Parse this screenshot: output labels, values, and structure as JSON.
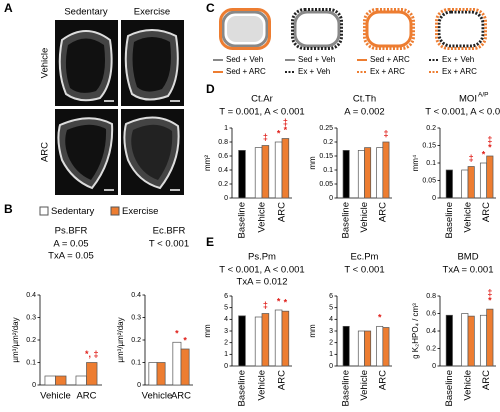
{
  "panels": [
    "A",
    "B",
    "C",
    "D",
    "E"
  ],
  "images": {
    "columns": [
      "Sedentary",
      "Exercise"
    ],
    "rows": [
      "Vehicle",
      "ARC"
    ]
  },
  "schematic": [
    {
      "legend": [
        "Sed + Veh",
        "Sed + ARC"
      ]
    },
    {
      "legend": [
        "Sed + Veh",
        "Ex + Veh"
      ]
    },
    {
      "legend": [
        "Sed + ARC",
        "Ex + ARC"
      ]
    },
    {
      "legend": [
        "Ex + Veh",
        "Ex + ARC"
      ]
    }
  ],
  "chart_data": [
    {
      "type": "bar",
      "title": "Ps.BFR",
      "stats": [
        "A = 0.05",
        "TxA = 0.05"
      ],
      "ylabel": "µm³/µm²/day",
      "categories": [
        "Vehicle",
        "ARC"
      ],
      "series": [
        {
          "name": "Sedentary",
          "color": "#ffffff",
          "values": [
            0.04,
            0.04
          ]
        },
        {
          "name": "Exercise",
          "color": "#ed7d31",
          "values": [
            0.04,
            0.1
          ]
        }
      ],
      "ylim": [
        0,
        0.4
      ],
      "yticks": [
        0,
        0.1,
        0.2,
        0.3,
        0.4
      ],
      "annotations": [
        {
          "text": "*, ‡",
          "series": 1,
          "index": 1
        }
      ]
    },
    {
      "type": "bar",
      "title": "Ec.BFR",
      "stats": [
        "T < 0.001"
      ],
      "ylabel": "µm³/µm²/day",
      "categories": [
        "Vehicle",
        "ARC"
      ],
      "series": [
        {
          "color": "#ffffff",
          "values": [
            0.1,
            0.19
          ]
        },
        {
          "color": "#ed7d31",
          "values": [
            0.1,
            0.16
          ]
        }
      ],
      "ylim": [
        0,
        0.4
      ],
      "yticks": [
        0,
        0.1,
        0.2,
        0.3,
        0.4
      ],
      "annotations": [
        {
          "text": "*",
          "series": 0,
          "index": 1
        },
        {
          "text": "*",
          "series": 1,
          "index": 1
        }
      ]
    },
    {
      "type": "bar",
      "title": "Ct.Ar",
      "stats": [
        "T = 0.001, A < 0.001"
      ],
      "ylabel": "mm²",
      "categories": [
        "Baseline",
        "Vehicle",
        "ARC"
      ],
      "series": [
        {
          "color": "#000000",
          "values": [
            0.68,
            null,
            null
          ]
        },
        {
          "color": "#ffffff",
          "values": [
            null,
            0.72,
            0.8
          ]
        },
        {
          "color": "#ed7d31",
          "values": [
            null,
            0.75,
            0.85
          ]
        }
      ],
      "ylim": [
        0,
        1
      ],
      "yticks": [
        0,
        0.2,
        0.4,
        0.6,
        0.8,
        1
      ],
      "annotations": [
        {
          "text": "‡",
          "series": 2,
          "index": 1
        },
        {
          "text": "*",
          "series": 1,
          "index": 2
        },
        {
          "text": "*",
          "series": 2,
          "index": 2
        },
        {
          "text": "‡",
          "series": 2,
          "index": 2
        }
      ]
    },
    {
      "type": "bar",
      "title": "Ct.Th",
      "stats": [
        "A = 0.002"
      ],
      "ylabel": "mm",
      "categories": [
        "Baseline",
        "Vehicle",
        "ARC"
      ],
      "series": [
        {
          "color": "#000000",
          "values": [
            0.17,
            null,
            null
          ]
        },
        {
          "color": "#ffffff",
          "values": [
            null,
            0.17,
            0.18
          ]
        },
        {
          "color": "#ed7d31",
          "values": [
            null,
            0.18,
            0.2
          ]
        }
      ],
      "ylim": [
        0,
        0.25
      ],
      "yticks": [
        0,
        0.05,
        0.1,
        0.15,
        0.2,
        0.25
      ],
      "annotations": [
        {
          "text": "‡",
          "series": 2,
          "index": 2
        }
      ]
    },
    {
      "type": "bar",
      "title": "MOI",
      "title_sup": "A/P",
      "stats": [
        "T < 0.001, A < 0.001"
      ],
      "ylabel": "mm⁴",
      "categories": [
        "Baseline",
        "Vehicle",
        "ARC"
      ],
      "series": [
        {
          "color": "#000000",
          "values": [
            0.08,
            null,
            null
          ]
        },
        {
          "color": "#ffffff",
          "values": [
            null,
            0.08,
            0.1
          ]
        },
        {
          "color": "#ed7d31",
          "values": [
            null,
            0.09,
            0.12
          ]
        }
      ],
      "ylim": [
        0,
        0.2
      ],
      "yticks": [
        0,
        0.05,
        0.1,
        0.15,
        0.2
      ],
      "annotations": [
        {
          "text": "‡",
          "series": 2,
          "index": 1
        },
        {
          "text": "*",
          "series": 1,
          "index": 2
        },
        {
          "text": "*",
          "series": 2,
          "index": 2
        },
        {
          "text": "‡",
          "series": 2,
          "index": 2
        }
      ]
    },
    {
      "type": "bar",
      "title": "Ps.Pm",
      "stats": [
        "T < 0.001, A < 0.001",
        "TxA = 0.012"
      ],
      "ylabel": "mm",
      "categories": [
        "Baseline",
        "Vehicle",
        "ARC"
      ],
      "series": [
        {
          "color": "#000000",
          "values": [
            4.3,
            null,
            null
          ]
        },
        {
          "color": "#ffffff",
          "values": [
            null,
            4.2,
            4.8
          ]
        },
        {
          "color": "#ed7d31",
          "values": [
            null,
            4.5,
            4.7
          ]
        }
      ],
      "ylim": [
        0,
        6
      ],
      "yticks": [
        0,
        1,
        2,
        3,
        4,
        5,
        6
      ],
      "annotations": [
        {
          "text": "‡",
          "series": 2,
          "index": 1
        },
        {
          "text": "*",
          "series": 1,
          "index": 2
        },
        {
          "text": "*",
          "series": 2,
          "index": 2
        }
      ]
    },
    {
      "type": "bar",
      "title": "Ec.Pm",
      "stats": [
        "T < 0.001"
      ],
      "ylabel": "mm",
      "categories": [
        "Baseline",
        "Vehicle",
        "ARC"
      ],
      "series": [
        {
          "color": "#000000",
          "values": [
            3.4,
            null,
            null
          ]
        },
        {
          "color": "#ffffff",
          "values": [
            null,
            3,
            3.4
          ]
        },
        {
          "color": "#ed7d31",
          "values": [
            null,
            3,
            3.3
          ]
        }
      ],
      "ylim": [
        0,
        6
      ],
      "yticks": [
        0,
        1,
        2,
        3,
        4,
        5,
        6
      ],
      "annotations": [
        {
          "text": "*",
          "series": 1,
          "index": 2
        }
      ]
    },
    {
      "type": "bar",
      "title": "BMD",
      "stats": [
        "TxA = 0.001"
      ],
      "ylabel": "g K₂HPO₄ / cm³",
      "categories": [
        "Baseline",
        "Vehicle",
        "ARC"
      ],
      "series": [
        {
          "color": "#000000",
          "values": [
            0.58,
            null,
            null
          ]
        },
        {
          "color": "#ffffff",
          "values": [
            null,
            0.6,
            0.58
          ]
        },
        {
          "color": "#ed7d31",
          "values": [
            null,
            0.57,
            0.65
          ]
        }
      ],
      "ylim": [
        0,
        0.8
      ],
      "yticks": [
        0,
        0.2,
        0.4,
        0.6,
        0.8
      ],
      "annotations": [
        {
          "text": "*",
          "series": 2,
          "index": 2
        },
        {
          "text": "‡",
          "series": 2,
          "index": 2
        }
      ]
    }
  ]
}
